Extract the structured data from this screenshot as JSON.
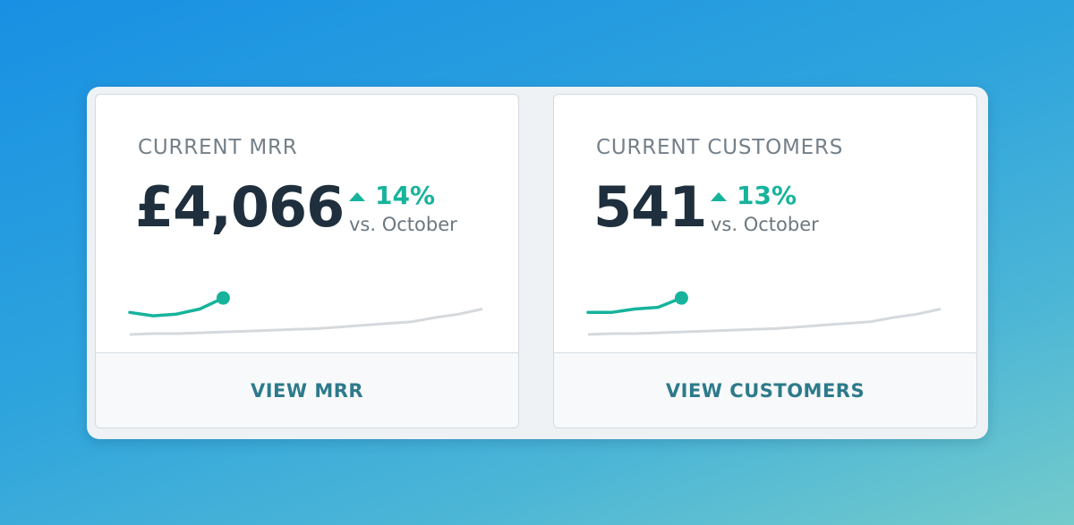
{
  "colors": {
    "accent_green": "#17b39c",
    "muted_line": "#d6d9dc",
    "title_text": "#758089",
    "value_text": "#1f2f3d",
    "link_text": "#2e7a8c"
  },
  "cards": [
    {
      "title": "CURRENT MRR",
      "value": "£4,066",
      "change_icon": "triangle-up-icon",
      "change_pct": "14%",
      "comparison": "vs. October",
      "action_label": "VIEW MRR",
      "sparkline": {
        "current": [
          0.26,
          0.22,
          0.24,
          0.3,
          0.43
        ],
        "previous": [
          0.0,
          0.01,
          0.01,
          0.02,
          0.03,
          0.04,
          0.05,
          0.06,
          0.07,
          0.09,
          0.11,
          0.13,
          0.15,
          0.2,
          0.24,
          0.3
        ]
      }
    },
    {
      "title": "CURRENT CUSTOMERS",
      "value": "541",
      "change_icon": "triangle-up-icon",
      "change_pct": "13%",
      "comparison": "vs. October",
      "action_label": "VIEW CUSTOMERS",
      "sparkline": {
        "current": [
          0.26,
          0.26,
          0.3,
          0.32,
          0.43
        ],
        "previous": [
          0.0,
          0.01,
          0.01,
          0.02,
          0.03,
          0.04,
          0.05,
          0.06,
          0.07,
          0.09,
          0.11,
          0.13,
          0.15,
          0.2,
          0.24,
          0.3
        ]
      }
    }
  ]
}
